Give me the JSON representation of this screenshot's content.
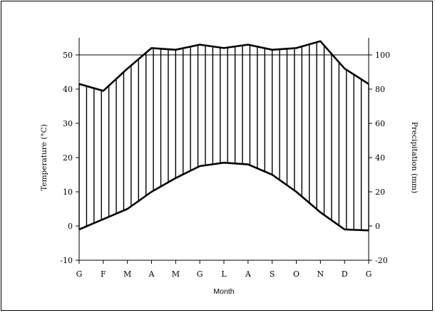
{
  "chart_data": {
    "type": "line",
    "title": "",
    "categories": [
      "G",
      "F",
      "M",
      "A",
      "M",
      "G",
      "L",
      "A",
      "S",
      "O",
      "N",
      "D",
      "G"
    ],
    "xlabel": "Month",
    "ylabel": "Temperature (°C)",
    "y2label": "Precipitation (mm)",
    "ylim": [
      -10,
      55
    ],
    "y2lim": [
      -20,
      110
    ],
    "yticks": [
      -10,
      0,
      10,
      20,
      30,
      40,
      50
    ],
    "y2ticks": [
      -20,
      0,
      20,
      40,
      60,
      80,
      100
    ],
    "grid": false,
    "hlines": [
      50
    ],
    "series": [
      {
        "axis": "left",
        "values": [
          -1,
          2,
          5,
          10,
          14,
          17.5,
          18.5,
          18,
          15,
          10,
          4,
          -1,
          -1.3
        ]
      },
      {
        "axis": "right",
        "values": [
          83,
          79,
          92,
          104,
          103,
          106,
          104,
          106,
          103,
          104,
          108,
          92,
          83
        ]
      }
    ],
    "fill_between": "vertical hatching"
  }
}
